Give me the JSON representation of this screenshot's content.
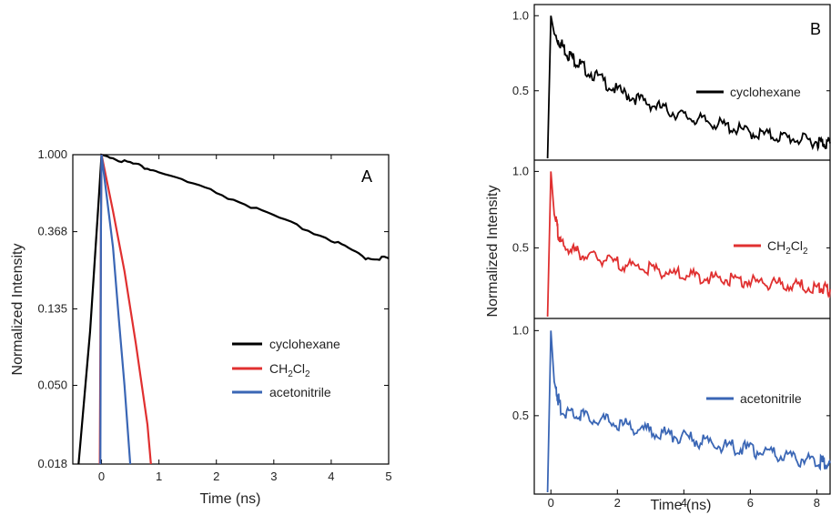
{
  "chart_data": [
    {
      "type": "line",
      "panel_label": "A",
      "xlabel": "Time (ns)",
      "ylabel": "Normalized Intensity",
      "xlim": [
        -0.5,
        5
      ],
      "ylim": [
        0.018,
        1.0
      ],
      "yscale": "log",
      "x_ticks": [
        "0",
        "1",
        "2",
        "3",
        "4",
        "5"
      ],
      "y_ticks": [
        "1.000",
        "0.368",
        "0.135",
        "0.050",
        "0.018"
      ],
      "legend_position": "lower-right",
      "series": [
        {
          "name": "cyclohexane",
          "color": "#000000",
          "x": [
            -0.4,
            -0.2,
            -0.05,
            0,
            0.5,
            1,
            2,
            3,
            4,
            4.6,
            5
          ],
          "y": [
            0.018,
            0.1,
            0.55,
            1.0,
            0.9,
            0.8,
            0.61,
            0.45,
            0.33,
            0.262,
            0.26
          ]
        },
        {
          "name": "CH2Cl2",
          "name_parts": [
            "CH",
            "2",
            "Cl",
            "2"
          ],
          "color": "#e03030",
          "x": [
            -0.03,
            -0.01,
            0,
            0.2,
            0.4,
            0.6,
            0.8,
            0.86
          ],
          "y": [
            0.018,
            0.4,
            1.0,
            0.48,
            0.22,
            0.085,
            0.03,
            0.018
          ]
        },
        {
          "name": "acetonitrile",
          "color": "#3a66b5",
          "x": [
            -0.02,
            -0.01,
            0,
            0.1,
            0.2,
            0.3,
            0.4,
            0.5
          ],
          "y": [
            0.018,
            0.4,
            1.0,
            0.55,
            0.3,
            0.12,
            0.05,
            0.018
          ]
        }
      ]
    },
    {
      "type": "line",
      "panel_label": "B",
      "xlabel": "Time (ns)",
      "ylabel": "Normalized Intensity",
      "xlim": [
        -0.5,
        8.4
      ],
      "x_ticks": [
        "0",
        "2",
        "4",
        "6",
        "8"
      ],
      "panels": [
        {
          "series_name": "cyclohexane",
          "color": "#000000",
          "ylim": [
            0.05,
            1.05
          ],
          "y_ticks": [
            "1.0",
            "0.5"
          ],
          "x": [
            -0.1,
            0,
            0.1,
            0.5,
            1,
            2,
            3,
            4,
            5,
            6,
            7,
            8,
            8.4
          ],
          "y": [
            0.05,
            1.0,
            0.88,
            0.75,
            0.65,
            0.5,
            0.41,
            0.33,
            0.28,
            0.22,
            0.19,
            0.16,
            0.15
          ]
        },
        {
          "series_name": "CH2Cl2",
          "name_parts": [
            "CH",
            "2",
            "Cl",
            "2"
          ],
          "color": "#e03030",
          "ylim": [
            0.05,
            1.05
          ],
          "y_ticks": [
            "1.0",
            "0.5"
          ],
          "x": [
            -0.1,
            0,
            0.1,
            0.3,
            1,
            2,
            3,
            4,
            5,
            6,
            7,
            8,
            8.4
          ],
          "y": [
            0.05,
            1.0,
            0.72,
            0.52,
            0.45,
            0.4,
            0.36,
            0.32,
            0.3,
            0.28,
            0.26,
            0.24,
            0.23
          ]
        },
        {
          "series_name": "acetonitrile",
          "color": "#3a66b5",
          "ylim": [
            0.05,
            1.05
          ],
          "y_ticks": [
            "1.0",
            "0.5"
          ],
          "x": [
            -0.1,
            0,
            0.1,
            0.3,
            1,
            2,
            3,
            4,
            5,
            6,
            7,
            8,
            8.4
          ],
          "y": [
            0.05,
            1.0,
            0.7,
            0.53,
            0.5,
            0.45,
            0.41,
            0.37,
            0.33,
            0.3,
            0.26,
            0.23,
            0.22
          ]
        }
      ]
    }
  ]
}
